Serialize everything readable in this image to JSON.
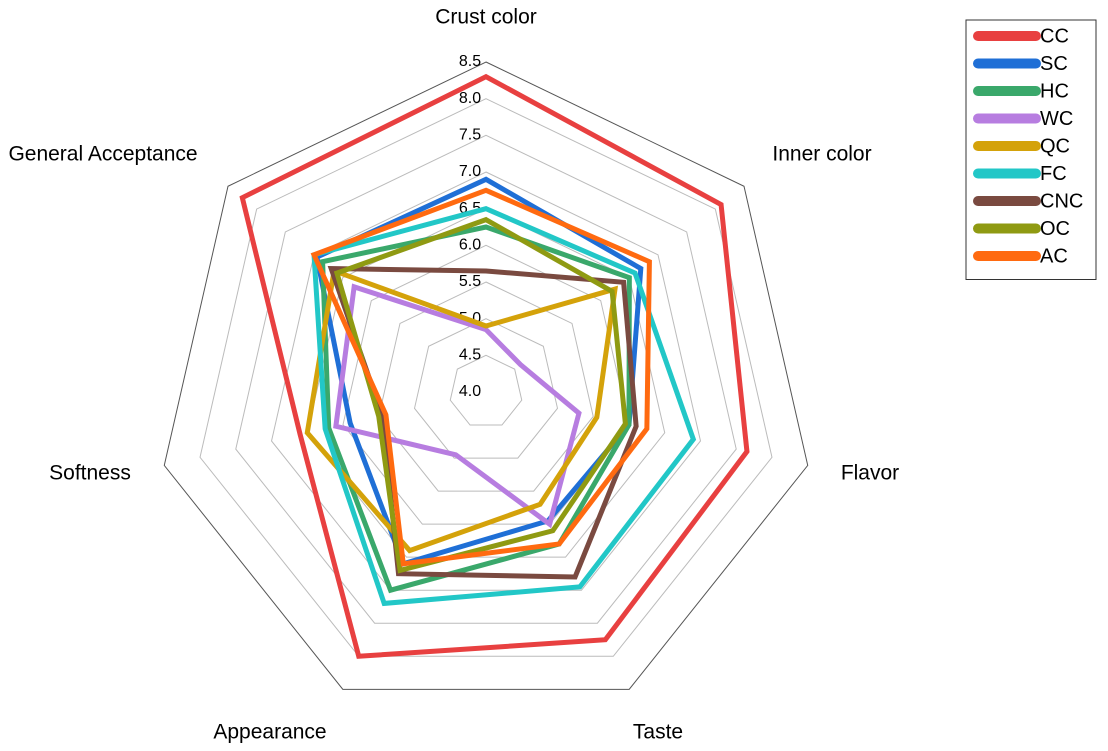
{
  "chart_data": {
    "type": "radar",
    "categories": [
      "Crust color",
      "Inner color",
      "Flavor",
      "Taste",
      "Appearance",
      "Softness",
      "General Acceptance"
    ],
    "ylim": [
      4.0,
      8.5
    ],
    "yticks": [
      {
        "value": 4,
        "label": "4.0"
      },
      4.5,
      {
        "value": 5,
        "label": "5.0"
      },
      5.5,
      {
        "value": 6,
        "label": "6.0"
      },
      6.5,
      {
        "value": 7,
        "label": "7.0"
      },
      7.5,
      {
        "value": 8,
        "label": "8.0"
      },
      8.5
    ],
    "legend": "top-right",
    "series": [
      {
        "name": "CC",
        "color": "#e84040",
        "values": [
          8.3,
          8.1,
          7.65,
          7.75,
          8.0,
          6.6,
          8.25
        ]
      },
      {
        "name": "SC",
        "color": "#1f6fd6",
        "values": [
          6.9,
          6.7,
          6.0,
          5.95,
          6.6,
          5.9,
          6.95
        ]
      },
      {
        "name": "HC",
        "color": "#3aa86b",
        "values": [
          6.25,
          6.5,
          6.0,
          6.3,
          7.0,
          6.2,
          6.85
        ]
      },
      {
        "name": "WC",
        "color": "#b77de0",
        "values": [
          4.85,
          4.6,
          5.3,
          6.0,
          4.95,
          6.1,
          6.3
        ]
      },
      {
        "name": "QC",
        "color": "#d4a20a",
        "values": [
          4.9,
          6.25,
          5.55,
          5.7,
          6.4,
          6.5,
          6.65
        ]
      },
      {
        "name": "FC",
        "color": "#22c7c7",
        "values": [
          6.5,
          6.6,
          6.9,
          6.95,
          7.2,
          6.25,
          7.0
        ]
      },
      {
        "name": "CNC",
        "color": "#7a4a40",
        "values": [
          5.65,
          6.4,
          6.1,
          6.8,
          6.75,
          5.45,
          6.7
        ]
      },
      {
        "name": "OC",
        "color": "#8f9a12",
        "values": [
          6.35,
          6.2,
          5.95,
          6.1,
          6.7,
          5.5,
          6.6
        ]
      },
      {
        "name": "AC",
        "color": "#ff6a10",
        "values": [
          6.75,
          6.85,
          6.25,
          6.3,
          6.6,
          5.4,
          7.0
        ]
      }
    ]
  }
}
